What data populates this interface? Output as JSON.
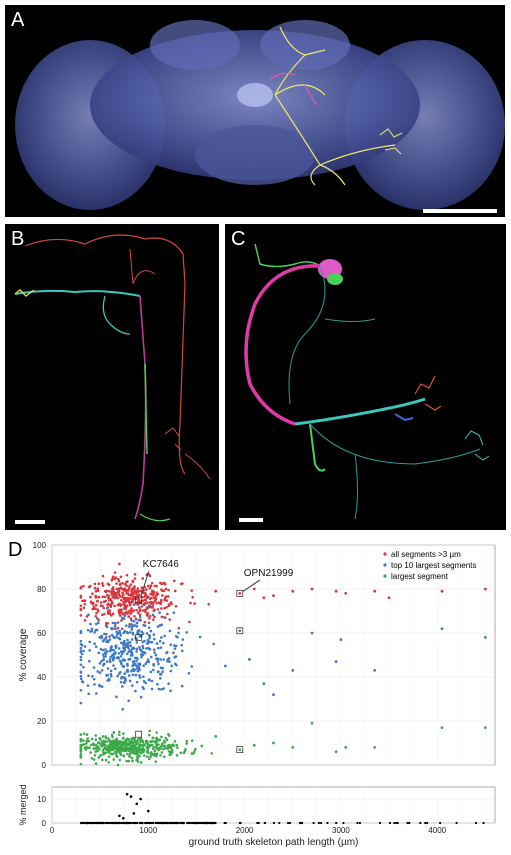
{
  "panels": {
    "a": {
      "label": "A"
    },
    "b": {
      "label": "B"
    },
    "c": {
      "label": "C"
    },
    "d": {
      "label": "D"
    }
  },
  "colors": {
    "brain": "#5561a8",
    "all_segments": "#d9363e",
    "top10": "#3c78c8",
    "largest": "#3aaa4a",
    "merged": "#000000"
  },
  "chart_data": [
    {
      "type": "scatter",
      "title": "",
      "xlabel": "ground truth skeleton path length (µm)",
      "ylabel": "% coverage",
      "xlim": [
        0,
        4600
      ],
      "ylim": [
        0,
        100
      ],
      "xticks": [
        0,
        1000,
        2000,
        3000,
        4000
      ],
      "yticks": [
        0,
        20,
        40,
        60,
        80,
        100
      ],
      "grid": true,
      "legend_position": "top-right",
      "series": [
        {
          "name": "all segments >3 µm",
          "color": "#d9363e",
          "cluster": {
            "x_center": 800,
            "x_spread": 230,
            "y_center": 75,
            "y_spread": 5,
            "count": 420
          },
          "x": [
            1950,
            2100,
            2300,
            2500,
            2700,
            2950,
            3050,
            3350,
            3500,
            4050,
            4500,
            2200,
            1700
          ],
          "y": [
            78,
            80,
            77,
            79,
            80,
            79,
            78,
            79,
            76,
            79,
            80,
            76,
            79
          ]
        },
        {
          "name": "top 10 largest segments",
          "color": "#3c78c8",
          "cluster": {
            "x_center": 780,
            "x_spread": 240,
            "y_center": 51,
            "y_spread": 9,
            "count": 420
          },
          "x": [
            1950,
            2050,
            2300,
            2500,
            2700,
            3000,
            3350,
            4050,
            4500,
            1800,
            2200,
            2950
          ],
          "y": [
            61,
            48,
            32,
            43,
            60,
            57,
            43,
            62,
            58,
            45,
            37,
            47
          ]
        },
        {
          "name": "largest segment",
          "color": "#3aaa4a",
          "cluster": {
            "x_center": 800,
            "x_spread": 250,
            "y_center": 8,
            "y_spread": 2.6,
            "count": 460
          },
          "x": [
            1950,
            2100,
            2500,
            2700,
            2950,
            3050,
            3350,
            4050,
            4500,
            1700,
            2300
          ],
          "y": [
            7,
            9,
            8,
            19,
            6,
            8,
            8,
            17,
            17,
            13,
            10
          ]
        }
      ],
      "highlights": [
        {
          "label": "KC7646",
          "x": 900,
          "y_values": [
            75,
            58,
            14
          ]
        },
        {
          "label": "OPN21999",
          "x": 1950,
          "y_values": [
            78,
            61,
            7
          ]
        }
      ]
    },
    {
      "type": "scatter",
      "title": "",
      "xlabel": "ground truth skeleton path length (µm)",
      "ylabel": "% merged",
      "xlim": [
        0,
        4600
      ],
      "ylim": [
        0,
        15
      ],
      "yticks": [
        0,
        10
      ],
      "grid": true,
      "series": [
        {
          "name": "% merged",
          "color": "#000000",
          "x": [
            780,
            820,
            880,
            920,
            1000,
            700,
            740,
            850
          ],
          "y": [
            12,
            11,
            8,
            10,
            5,
            3,
            2,
            4
          ],
          "baseline_count": 300
        }
      ]
    }
  ]
}
